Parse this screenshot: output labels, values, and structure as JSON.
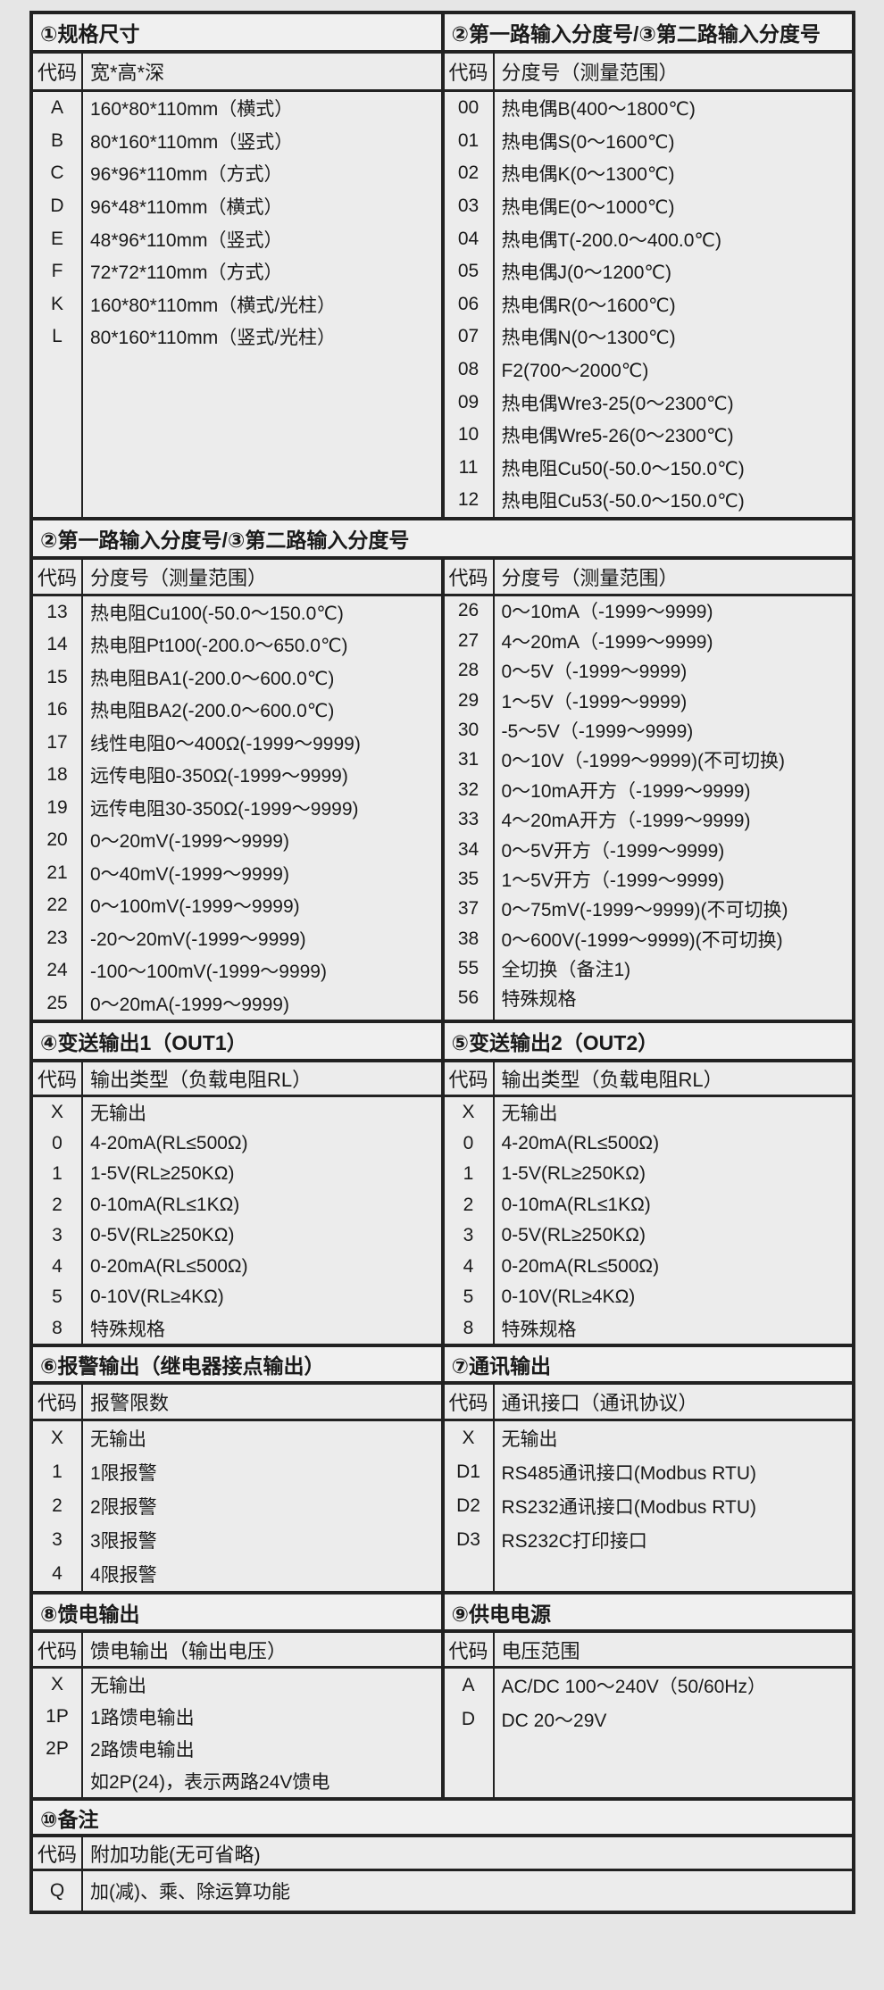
{
  "s1": {
    "title": "①规格尺寸",
    "code_header": "代码",
    "desc_header": "宽*高*深",
    "rows": [
      {
        "code": "A",
        "desc": "160*80*110mm（横式）"
      },
      {
        "code": "B",
        "desc": "80*160*110mm（竖式）"
      },
      {
        "code": "C",
        "desc": "96*96*110mm（方式）"
      },
      {
        "code": "D",
        "desc": "96*48*110mm（横式）"
      },
      {
        "code": "E",
        "desc": "48*96*110mm（竖式）"
      },
      {
        "code": "F",
        "desc": "72*72*110mm（方式）"
      },
      {
        "code": "K",
        "desc": "160*80*110mm（横式/光柱）"
      },
      {
        "code": "L",
        "desc": "80*160*110mm（竖式/光柱）"
      }
    ]
  },
  "s2a": {
    "title": "②第一路输入分度号/③第二路输入分度号",
    "code_header": "代码",
    "desc_header": "分度号（测量范围）",
    "rows": [
      {
        "code": "00",
        "desc": "热电偶B(400～1800℃)"
      },
      {
        "code": "01",
        "desc": "热电偶S(0～1600℃)"
      },
      {
        "code": "02",
        "desc": "热电偶K(0～1300℃)"
      },
      {
        "code": "03",
        "desc": "热电偶E(0～1000℃)"
      },
      {
        "code": "04",
        "desc": "热电偶T(-200.0～400.0℃)"
      },
      {
        "code": "05",
        "desc": "热电偶J(0～1200℃)"
      },
      {
        "code": "06",
        "desc": "热电偶R(0～1600℃)"
      },
      {
        "code": "07",
        "desc": "热电偶N(0～1300℃)"
      },
      {
        "code": "08",
        "desc": "F2(700～2000℃)"
      },
      {
        "code": "09",
        "desc": "热电偶Wre3-25(0～2300℃)"
      },
      {
        "code": "10",
        "desc": "热电偶Wre5-26(0～2300℃)"
      },
      {
        "code": "11",
        "desc": "热电阻Cu50(-50.0～150.0℃)"
      },
      {
        "code": "12",
        "desc": "热电阻Cu53(-50.0～150.0℃)"
      }
    ]
  },
  "s2b": {
    "title": "②第一路输入分度号/③第二路输入分度号",
    "left": {
      "code_header": "代码",
      "desc_header": "分度号（测量范围）",
      "rows": [
        {
          "code": "13",
          "desc": "热电阻Cu100(-50.0～150.0℃)"
        },
        {
          "code": "14",
          "desc": "热电阻Pt100(-200.0～650.0℃)"
        },
        {
          "code": "15",
          "desc": "热电阻BA1(-200.0～600.0℃)"
        },
        {
          "code": "16",
          "desc": "热电阻BA2(-200.0～600.0℃)"
        },
        {
          "code": "17",
          "desc": "线性电阻0～400Ω(-1999～9999)"
        },
        {
          "code": "18",
          "desc": "远传电阻0-350Ω(-1999～9999)"
        },
        {
          "code": "19",
          "desc": "远传电阻30-350Ω(-1999～9999)"
        },
        {
          "code": "20",
          "desc": "0～20mV(-1999～9999)"
        },
        {
          "code": "21",
          "desc": "0～40mV(-1999～9999)"
        },
        {
          "code": "22",
          "desc": "0～100mV(-1999～9999)"
        },
        {
          "code": "23",
          "desc": "-20～20mV(-1999～9999)"
        },
        {
          "code": "24",
          "desc": "-100～100mV(-1999～9999)"
        },
        {
          "code": "25",
          "desc": "0～20mA(-1999～9999)"
        }
      ]
    },
    "right": {
      "code_header": "代码",
      "desc_header": "分度号（测量范围）",
      "rows": [
        {
          "code": "26",
          "desc": "0～10mA（-1999～9999)"
        },
        {
          "code": "27",
          "desc": "4～20mA（-1999～9999)"
        },
        {
          "code": "28",
          "desc": "0～5V（-1999～9999)"
        },
        {
          "code": "29",
          "desc": "1～5V（-1999～9999)"
        },
        {
          "code": "30",
          "desc": "-5～5V（-1999～9999)"
        },
        {
          "code": "31",
          "desc": "0～10V（-1999～9999)(不可切换)"
        },
        {
          "code": "32",
          "desc": "0～10mA开方（-1999～9999)"
        },
        {
          "code": "33",
          "desc": "4～20mA开方（-1999～9999)"
        },
        {
          "code": "34",
          "desc": "0～5V开方（-1999～9999)"
        },
        {
          "code": "35",
          "desc": "1～5V开方（-1999～9999)"
        },
        {
          "code": "37",
          "desc": "0～75mV(-1999～9999)(不可切换)"
        },
        {
          "code": "38",
          "desc": "0～600V(-1999～9999)(不可切换)"
        },
        {
          "code": "55",
          "desc": "全切换（备注1)"
        },
        {
          "code": "56",
          "desc": "特殊规格"
        }
      ]
    }
  },
  "s4": {
    "title": "④变送输出1（OUT1）",
    "code_header": "代码",
    "desc_header": "输出类型（负载电阻RL）",
    "rows": [
      {
        "code": "X",
        "desc": "无输出"
      },
      {
        "code": "0",
        "desc": "4-20mA(RL≤500Ω)"
      },
      {
        "code": "1",
        "desc": "1-5V(RL≥250KΩ)"
      },
      {
        "code": "2",
        "desc": "0-10mA(RL≤1KΩ)"
      },
      {
        "code": "3",
        "desc": "0-5V(RL≥250KΩ)"
      },
      {
        "code": "4",
        "desc": "0-20mA(RL≤500Ω)"
      },
      {
        "code": "5",
        "desc": "0-10V(RL≥4KΩ)"
      },
      {
        "code": "8",
        "desc": "特殊规格"
      }
    ]
  },
  "s5": {
    "title": "⑤变送输出2（OUT2）",
    "code_header": "代码",
    "desc_header": "输出类型（负载电阻RL）",
    "rows": [
      {
        "code": "X",
        "desc": "无输出"
      },
      {
        "code": "0",
        "desc": "4-20mA(RL≤500Ω)"
      },
      {
        "code": "1",
        "desc": "1-5V(RL≥250KΩ)"
      },
      {
        "code": "2",
        "desc": "0-10mA(RL≤1KΩ)"
      },
      {
        "code": "3",
        "desc": "0-5V(RL≥250KΩ)"
      },
      {
        "code": "4",
        "desc": "0-20mA(RL≤500Ω)"
      },
      {
        "code": "5",
        "desc": "0-10V(RL≥4KΩ)"
      },
      {
        "code": "8",
        "desc": "特殊规格"
      }
    ]
  },
  "s6": {
    "title": "⑥报警输出（继电器接点输出）",
    "code_header": "代码",
    "desc_header": "报警限数",
    "rows": [
      {
        "code": "X",
        "desc": "无输出"
      },
      {
        "code": "1",
        "desc": "1限报警"
      },
      {
        "code": "2",
        "desc": "2限报警"
      },
      {
        "code": "3",
        "desc": "3限报警"
      },
      {
        "code": "4",
        "desc": "4限报警"
      }
    ]
  },
  "s7": {
    "title": "⑦通讯输出",
    "code_header": "代码",
    "desc_header": "通讯接口（通讯协议）",
    "rows": [
      {
        "code": "X",
        "desc": "无输出"
      },
      {
        "code": "D1",
        "desc": "RS485通讯接口(Modbus RTU)"
      },
      {
        "code": "D2",
        "desc": "RS232通讯接口(Modbus RTU)"
      },
      {
        "code": "D3",
        "desc": "RS232C打印接口"
      }
    ]
  },
  "s8": {
    "title": "⑧馈电输出",
    "code_header": "代码",
    "desc_header": "馈电输出（输出电压）",
    "rows": [
      {
        "code": "X",
        "desc": "无输出"
      },
      {
        "code": "1P",
        "desc": "1路馈电输出"
      },
      {
        "code": "2P",
        "desc": "2路馈电输出"
      },
      {
        "code": "",
        "desc": "如2P(24)，表示两路24V馈电"
      }
    ]
  },
  "s9": {
    "title": "⑨供电电源",
    "code_header": "代码",
    "desc_header": "电压范围",
    "rows": [
      {
        "code": "A",
        "desc": "AC/DC 100～240V（50/60Hz）"
      },
      {
        "code": "D",
        "desc": "DC 20～29V"
      }
    ]
  },
  "s10": {
    "title": "⑩备注",
    "code_header": "代码",
    "desc_header": "附加功能(无可省略)",
    "rows": [
      {
        "code": "Q",
        "desc": "加(减)、乘、除运算功能"
      }
    ]
  }
}
